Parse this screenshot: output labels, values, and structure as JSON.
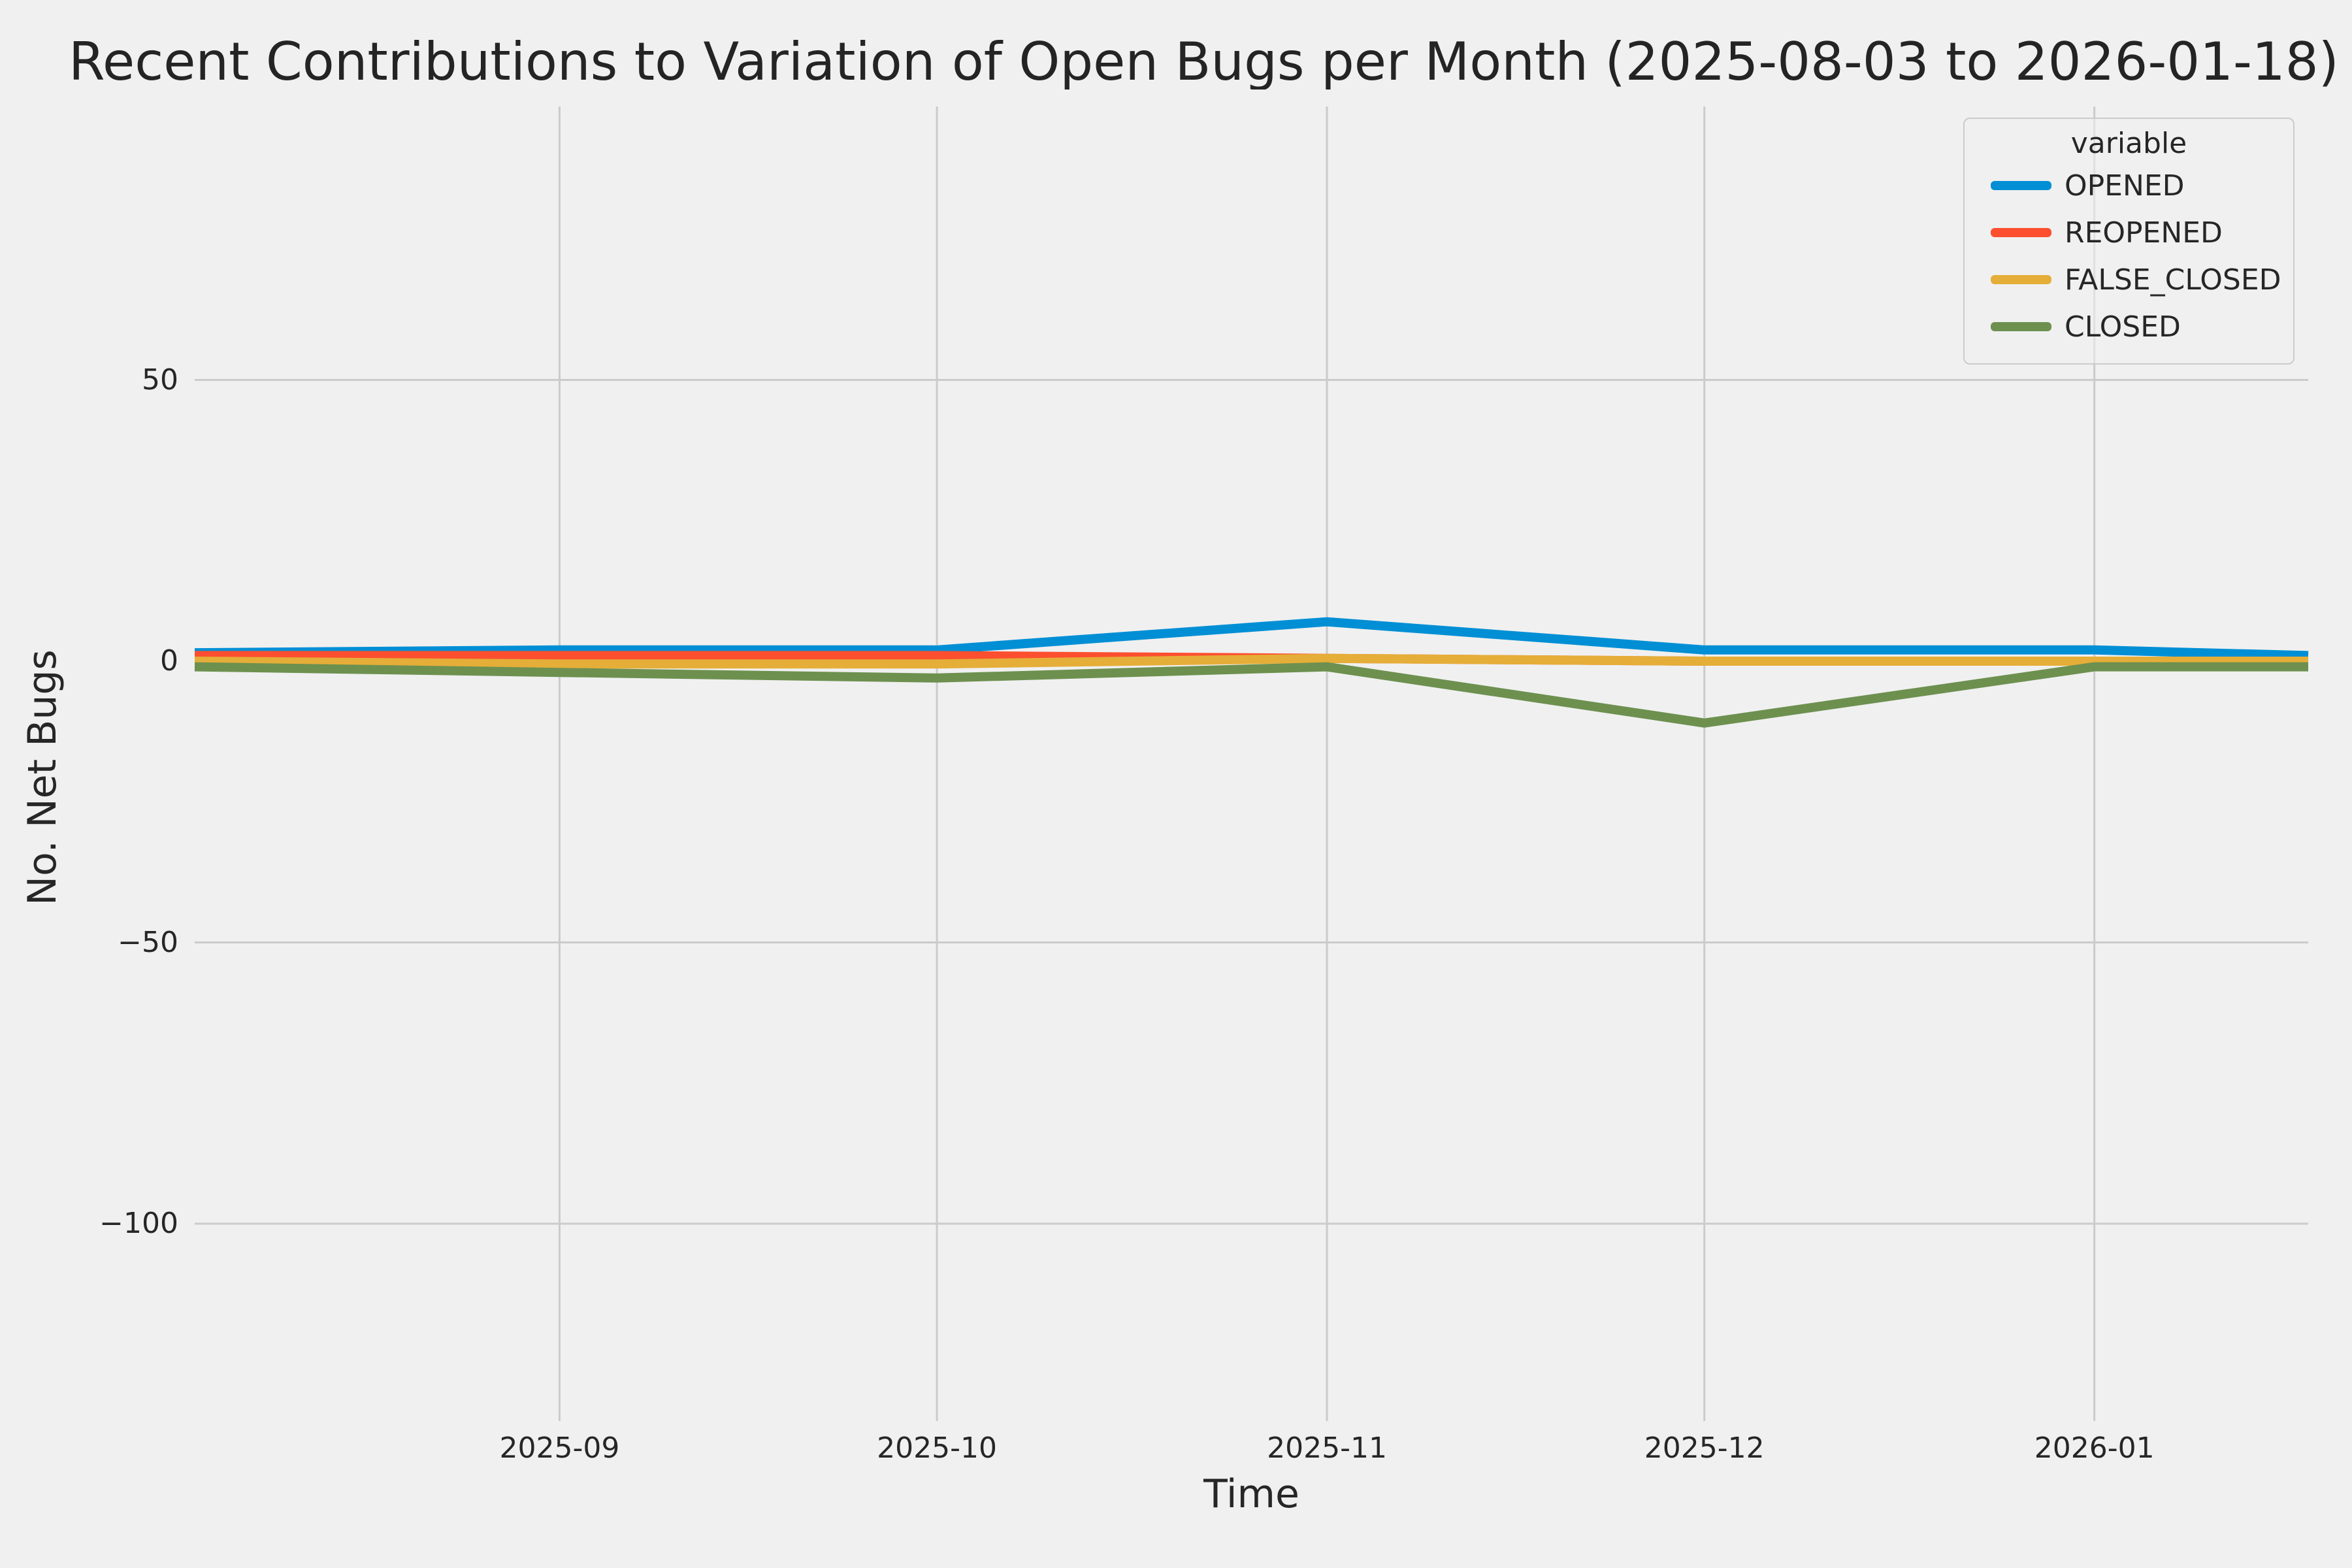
{
  "title": "Recent Contributions to Variation of Open Bugs per Month (2025-08-03 to 2026-01-18)",
  "axes": {
    "xlabel": "Time",
    "ylabel": "No. Net Bugs",
    "y_ticks": [
      {
        "label": "50",
        "value": 50
      },
      {
        "label": "0",
        "value": 0
      },
      {
        "label": "−50",
        "value": -50
      },
      {
        "label": "−100",
        "value": -100
      }
    ],
    "x_ticks": [
      {
        "label": "2025-09",
        "date": "2025-09-01"
      },
      {
        "label": "2025-10",
        "date": "2025-10-01"
      },
      {
        "label": "2025-11",
        "date": "2025-11-01"
      },
      {
        "label": "2025-12",
        "date": "2025-12-01"
      },
      {
        "label": "2026-01",
        "date": "2026-01-01"
      }
    ]
  },
  "legend": {
    "title": "variable",
    "entries": [
      {
        "label": "OPENED",
        "color": "#008fd5"
      },
      {
        "label": "REOPENED",
        "color": "#fc4f30"
      },
      {
        "label": "FALSE_CLOSED",
        "color": "#e5ae38"
      },
      {
        "label": "CLOSED",
        "color": "#6d904f"
      }
    ]
  },
  "chart_data": {
    "type": "line",
    "title": "Recent Contributions to Variation of Open Bugs per Month (2025-08-03 to 2026-01-18)",
    "xlabel": "Time",
    "ylabel": "No. Net Bugs",
    "x": [
      "2025-08-03",
      "2025-09-01",
      "2025-10-01",
      "2025-11-01",
      "2025-12-01",
      "2026-01-01",
      "2026-01-18"
    ],
    "series": [
      {
        "name": "OPENED",
        "color": "#008fd5",
        "values": [
          1.5,
          2,
          2,
          7,
          2,
          2,
          1
        ]
      },
      {
        "name": "REOPENED",
        "color": "#fc4f30",
        "values": [
          1,
          1,
          1,
          0.5,
          0,
          0,
          0
        ]
      },
      {
        "name": "FALSE_CLOSED",
        "color": "#e5ae38",
        "values": [
          0,
          -0.5,
          -0.5,
          0.5,
          0,
          0,
          0
        ]
      },
      {
        "name": "CLOSED",
        "color": "#6d904f",
        "values": [
          -1,
          -2,
          -3,
          -1,
          -11,
          -1,
          -1
        ]
      }
    ],
    "xlim": [
      "2025-08-03",
      "2026-01-18"
    ],
    "ylim": [
      -135,
      99
    ],
    "grid": true,
    "legend_title": "variable",
    "legend_position": "upper right",
    "background_color": "#f0f0f0",
    "gridline_color": "#cbcbcb"
  }
}
